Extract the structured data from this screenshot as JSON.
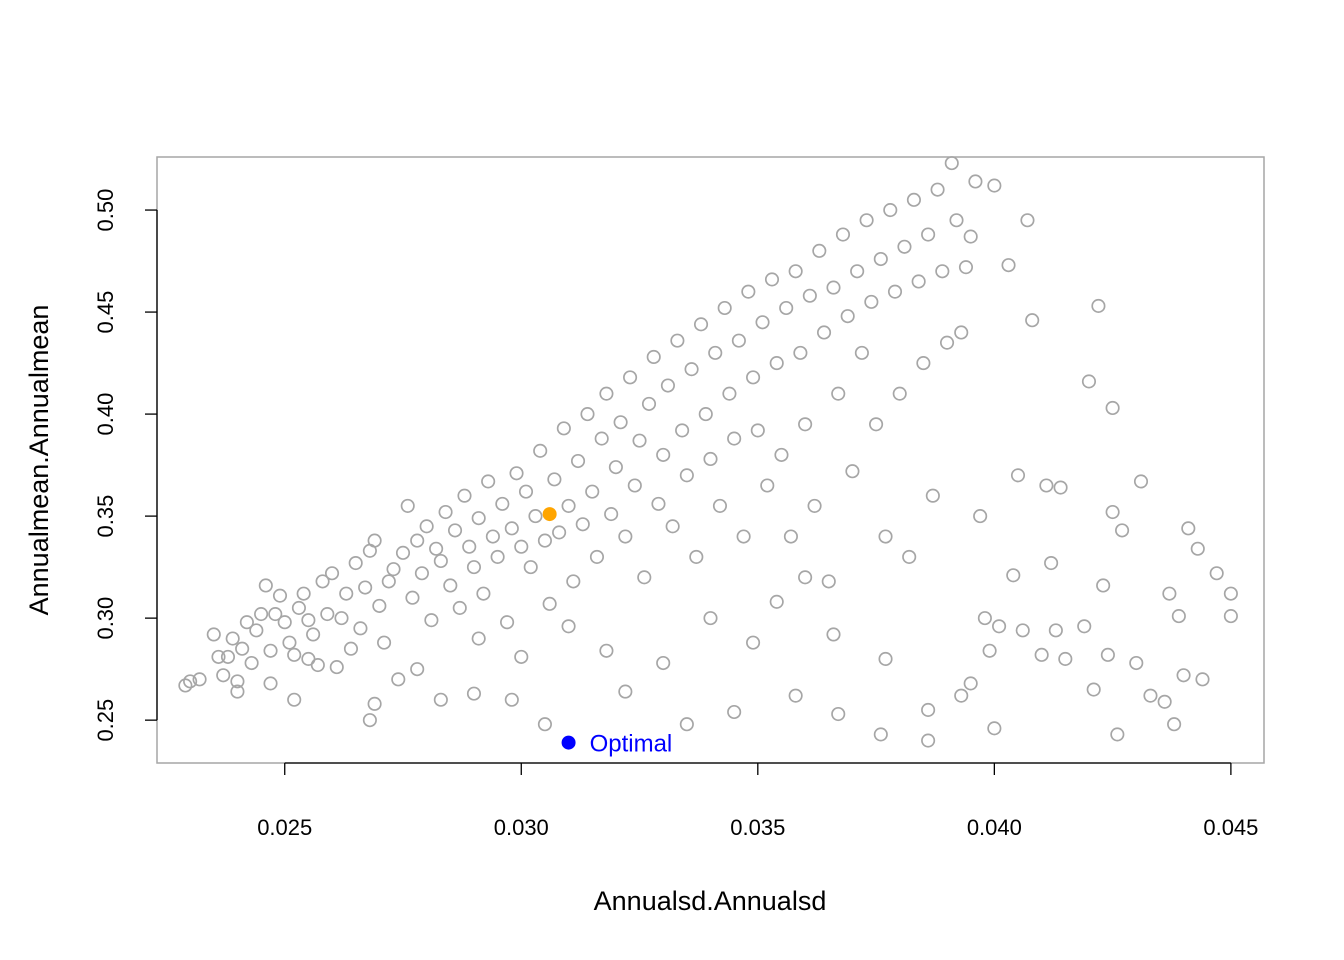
{
  "chart_data": {
    "type": "scatter",
    "xlabel": "Annualsd.Annualsd",
    "ylabel": "Annualmean.Annualmean",
    "xlim": [
      0.0223,
      0.0457
    ],
    "ylim": [
      0.229,
      0.526
    ],
    "x_ticks": [
      "0.025",
      "0.030",
      "0.035",
      "0.040",
      "0.045"
    ],
    "y_ticks": [
      "0.25",
      "0.30",
      "0.35",
      "0.40",
      "0.45",
      "0.50"
    ],
    "grid": false,
    "colors": {
      "points": "#a6a6a6",
      "highlight": "#ffa500",
      "optimal": "#0000ff",
      "axis": "#000000",
      "box": "#a6a6a6"
    },
    "series": [
      {
        "points": [
          [
            0.0229,
            0.267
          ],
          [
            0.023,
            0.269
          ],
          [
            0.0232,
            0.27
          ],
          [
            0.0235,
            0.292
          ],
          [
            0.0236,
            0.281
          ],
          [
            0.0237,
            0.272
          ],
          [
            0.0238,
            0.281
          ],
          [
            0.0239,
            0.29
          ],
          [
            0.024,
            0.269
          ],
          [
            0.024,
            0.264
          ],
          [
            0.0241,
            0.285
          ],
          [
            0.0242,
            0.298
          ],
          [
            0.0243,
            0.278
          ],
          [
            0.0244,
            0.294
          ],
          [
            0.0245,
            0.302
          ],
          [
            0.0246,
            0.316
          ],
          [
            0.0247,
            0.284
          ],
          [
            0.0247,
            0.268
          ],
          [
            0.0248,
            0.302
          ],
          [
            0.0249,
            0.311
          ],
          [
            0.025,
            0.298
          ],
          [
            0.0251,
            0.288
          ],
          [
            0.0252,
            0.282
          ],
          [
            0.0252,
            0.26
          ],
          [
            0.0253,
            0.305
          ],
          [
            0.0254,
            0.312
          ],
          [
            0.0255,
            0.299
          ],
          [
            0.0255,
            0.28
          ],
          [
            0.0256,
            0.292
          ],
          [
            0.0257,
            0.277
          ],
          [
            0.0258,
            0.318
          ],
          [
            0.0259,
            0.302
          ],
          [
            0.026,
            0.322
          ],
          [
            0.0261,
            0.276
          ],
          [
            0.0262,
            0.3
          ],
          [
            0.0263,
            0.312
          ],
          [
            0.0264,
            0.285
          ],
          [
            0.0265,
            0.327
          ],
          [
            0.0266,
            0.295
          ],
          [
            0.0267,
            0.315
          ],
          [
            0.0268,
            0.333
          ],
          [
            0.0268,
            0.25
          ],
          [
            0.0269,
            0.338
          ],
          [
            0.027,
            0.306
          ],
          [
            0.0271,
            0.288
          ],
          [
            0.0272,
            0.318
          ],
          [
            0.0273,
            0.324
          ],
          [
            0.0274,
            0.27
          ],
          [
            0.0275,
            0.332
          ],
          [
            0.0276,
            0.355
          ],
          [
            0.0277,
            0.31
          ],
          [
            0.0278,
            0.338
          ],
          [
            0.0279,
            0.322
          ],
          [
            0.028,
            0.345
          ],
          [
            0.0281,
            0.299
          ],
          [
            0.0282,
            0.334
          ],
          [
            0.0283,
            0.328
          ],
          [
            0.0283,
            0.26
          ],
          [
            0.0284,
            0.352
          ],
          [
            0.0285,
            0.316
          ],
          [
            0.0286,
            0.343
          ],
          [
            0.0287,
            0.305
          ],
          [
            0.0288,
            0.36
          ],
          [
            0.0289,
            0.335
          ],
          [
            0.029,
            0.325
          ],
          [
            0.0291,
            0.349
          ],
          [
            0.0291,
            0.29
          ],
          [
            0.0292,
            0.312
          ],
          [
            0.0293,
            0.367
          ],
          [
            0.0294,
            0.34
          ],
          [
            0.0295,
            0.33
          ],
          [
            0.0296,
            0.356
          ],
          [
            0.0297,
            0.298
          ],
          [
            0.0298,
            0.344
          ],
          [
            0.0299,
            0.371
          ],
          [
            0.03,
            0.335
          ],
          [
            0.03,
            0.281
          ],
          [
            0.0301,
            0.362
          ],
          [
            0.0302,
            0.325
          ],
          [
            0.0303,
            0.35
          ],
          [
            0.0304,
            0.382
          ],
          [
            0.0305,
            0.338
          ],
          [
            0.0306,
            0.307
          ],
          [
            0.0307,
            0.368
          ],
          [
            0.0308,
            0.342
          ],
          [
            0.0309,
            0.393
          ],
          [
            0.031,
            0.355
          ],
          [
            0.0311,
            0.318
          ],
          [
            0.0312,
            0.377
          ],
          [
            0.0313,
            0.346
          ],
          [
            0.0314,
            0.4
          ],
          [
            0.0315,
            0.362
          ],
          [
            0.0316,
            0.33
          ],
          [
            0.0317,
            0.388
          ],
          [
            0.0318,
            0.41
          ],
          [
            0.0319,
            0.351
          ],
          [
            0.032,
            0.374
          ],
          [
            0.0321,
            0.396
          ],
          [
            0.0322,
            0.34
          ],
          [
            0.0323,
            0.418
          ],
          [
            0.0324,
            0.365
          ],
          [
            0.0325,
            0.387
          ],
          [
            0.0326,
            0.32
          ],
          [
            0.0327,
            0.405
          ],
          [
            0.0328,
            0.428
          ],
          [
            0.0329,
            0.356
          ],
          [
            0.033,
            0.38
          ],
          [
            0.0331,
            0.414
          ],
          [
            0.0332,
            0.345
          ],
          [
            0.0333,
            0.436
          ],
          [
            0.0334,
            0.392
          ],
          [
            0.0335,
            0.37
          ],
          [
            0.0336,
            0.422
          ],
          [
            0.0337,
            0.33
          ],
          [
            0.0338,
            0.444
          ],
          [
            0.0339,
            0.4
          ],
          [
            0.034,
            0.378
          ],
          [
            0.0341,
            0.43
          ],
          [
            0.0342,
            0.355
          ],
          [
            0.0343,
            0.452
          ],
          [
            0.0344,
            0.41
          ],
          [
            0.0345,
            0.388
          ],
          [
            0.0346,
            0.436
          ],
          [
            0.0347,
            0.34
          ],
          [
            0.0348,
            0.46
          ],
          [
            0.0349,
            0.418
          ],
          [
            0.035,
            0.392
          ],
          [
            0.0351,
            0.445
          ],
          [
            0.0352,
            0.365
          ],
          [
            0.0353,
            0.466
          ],
          [
            0.0354,
            0.425
          ],
          [
            0.0355,
            0.38
          ],
          [
            0.0356,
            0.452
          ],
          [
            0.0357,
            0.34
          ],
          [
            0.0358,
            0.47
          ],
          [
            0.0359,
            0.43
          ],
          [
            0.036,
            0.395
          ],
          [
            0.0361,
            0.458
          ],
          [
            0.0362,
            0.355
          ],
          [
            0.0363,
            0.48
          ],
          [
            0.0364,
            0.44
          ],
          [
            0.0365,
            0.318
          ],
          [
            0.0366,
            0.462
          ],
          [
            0.0367,
            0.41
          ],
          [
            0.0368,
            0.488
          ],
          [
            0.0369,
            0.448
          ],
          [
            0.037,
            0.372
          ],
          [
            0.0371,
            0.47
          ],
          [
            0.0372,
            0.43
          ],
          [
            0.0373,
            0.495
          ],
          [
            0.0374,
            0.455
          ],
          [
            0.0375,
            0.395
          ],
          [
            0.0376,
            0.476
          ],
          [
            0.0377,
            0.34
          ],
          [
            0.0378,
            0.5
          ],
          [
            0.0379,
            0.46
          ],
          [
            0.038,
            0.41
          ],
          [
            0.0381,
            0.482
          ],
          [
            0.0382,
            0.33
          ],
          [
            0.0383,
            0.505
          ],
          [
            0.0384,
            0.465
          ],
          [
            0.0385,
            0.425
          ],
          [
            0.0386,
            0.488
          ],
          [
            0.0387,
            0.36
          ],
          [
            0.0388,
            0.51
          ],
          [
            0.0389,
            0.47
          ],
          [
            0.039,
            0.435
          ],
          [
            0.0391,
            0.523
          ],
          [
            0.0392,
            0.495
          ],
          [
            0.0393,
            0.44
          ],
          [
            0.0394,
            0.472
          ],
          [
            0.0395,
            0.487
          ],
          [
            0.0396,
            0.514
          ],
          [
            0.0397,
            0.35
          ],
          [
            0.0398,
            0.3
          ],
          [
            0.0399,
            0.284
          ],
          [
            0.04,
            0.512
          ],
          [
            0.0401,
            0.296
          ],
          [
            0.0403,
            0.473
          ],
          [
            0.0404,
            0.321
          ],
          [
            0.0405,
            0.37
          ],
          [
            0.0406,
            0.294
          ],
          [
            0.0407,
            0.495
          ],
          [
            0.0408,
            0.446
          ],
          [
            0.041,
            0.282
          ],
          [
            0.0411,
            0.365
          ],
          [
            0.0412,
            0.327
          ],
          [
            0.0413,
            0.294
          ],
          [
            0.0414,
            0.364
          ],
          [
            0.0415,
            0.28
          ],
          [
            0.0419,
            0.296
          ],
          [
            0.042,
            0.416
          ],
          [
            0.0421,
            0.265
          ],
          [
            0.0422,
            0.453
          ],
          [
            0.0423,
            0.316
          ],
          [
            0.0424,
            0.282
          ],
          [
            0.0425,
            0.352
          ],
          [
            0.0425,
            0.403
          ],
          [
            0.0426,
            0.243
          ],
          [
            0.0427,
            0.343
          ],
          [
            0.043,
            0.278
          ],
          [
            0.0431,
            0.367
          ],
          [
            0.0433,
            0.262
          ],
          [
            0.0436,
            0.259
          ],
          [
            0.0437,
            0.312
          ],
          [
            0.0438,
            0.248
          ],
          [
            0.0439,
            0.301
          ],
          [
            0.044,
            0.272
          ],
          [
            0.0441,
            0.344
          ],
          [
            0.0443,
            0.334
          ],
          [
            0.0444,
            0.27
          ],
          [
            0.0447,
            0.322
          ],
          [
            0.045,
            0.312
          ],
          [
            0.045,
            0.301
          ],
          [
            0.0305,
            0.248
          ],
          [
            0.0322,
            0.264
          ],
          [
            0.0335,
            0.248
          ],
          [
            0.0345,
            0.254
          ],
          [
            0.0358,
            0.262
          ],
          [
            0.0367,
            0.253
          ],
          [
            0.0376,
            0.243
          ],
          [
            0.0386,
            0.24
          ],
          [
            0.0393,
            0.262
          ],
          [
            0.04,
            0.246
          ],
          [
            0.0395,
            0.268
          ],
          [
            0.0386,
            0.255
          ],
          [
            0.0377,
            0.28
          ],
          [
            0.0366,
            0.292
          ],
          [
            0.036,
            0.32
          ],
          [
            0.0354,
            0.308
          ],
          [
            0.0349,
            0.288
          ],
          [
            0.034,
            0.3
          ],
          [
            0.033,
            0.278
          ],
          [
            0.0318,
            0.284
          ],
          [
            0.031,
            0.296
          ],
          [
            0.0298,
            0.26
          ],
          [
            0.029,
            0.263
          ],
          [
            0.0278,
            0.275
          ],
          [
            0.0269,
            0.258
          ]
        ]
      },
      {
        "points": [
          [
            0.0306,
            0.351
          ]
        ]
      },
      {
        "points": [
          [
            0.031,
            0.239
          ]
        ]
      }
    ],
    "annotations": [
      {
        "text": "Optimal",
        "x": 0.031,
        "y": 0.239
      }
    ]
  }
}
